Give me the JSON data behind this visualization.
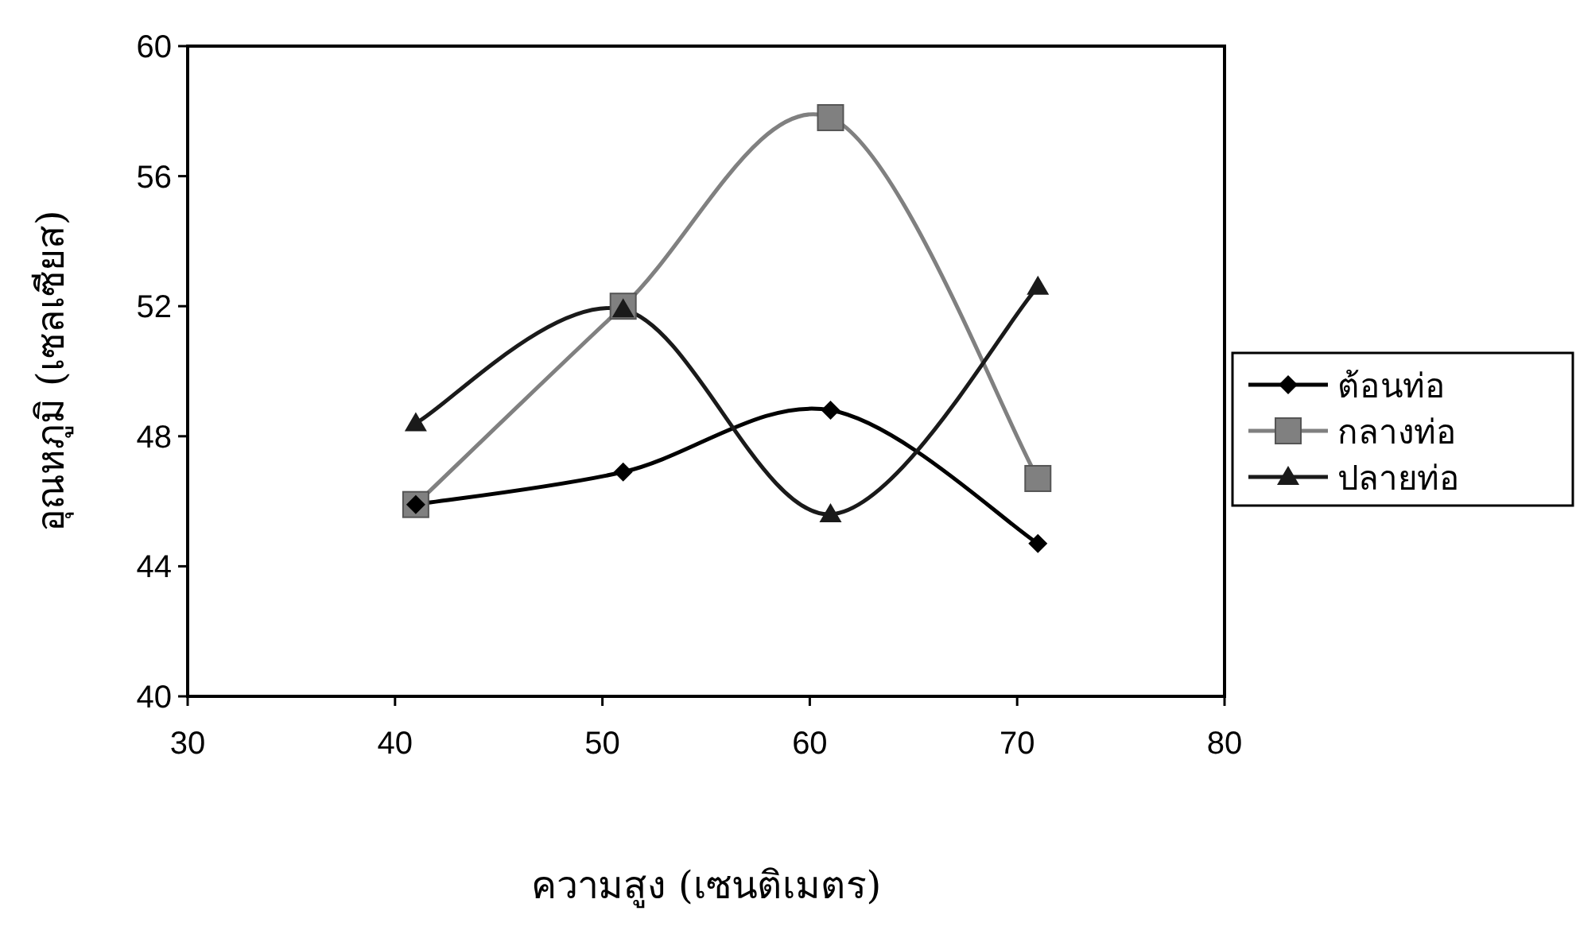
{
  "chart_data": {
    "type": "line",
    "xlabel": "ความสูง (เซนติเมตร)",
    "ylabel": "อุณหภูมิ (เซลเซียส)",
    "xlim": [
      30,
      80
    ],
    "xticks": [
      30,
      40,
      50,
      60,
      70,
      80
    ],
    "ylim": [
      40,
      60
    ],
    "yticks": [
      40,
      44,
      48,
      52,
      56,
      60
    ],
    "grid": false,
    "legend": "right",
    "line_style": "solid",
    "x": [
      41,
      51,
      61,
      71
    ],
    "series": [
      {
        "name": "ต้อนท่อ",
        "color": "#000000",
        "marker": "diamond",
        "values": [
          45.9,
          46.9,
          48.8,
          44.7
        ]
      },
      {
        "name": "กลางท่อ",
        "color": "#808080",
        "marker": "square",
        "values": [
          45.9,
          52.0,
          57.8,
          46.7
        ]
      },
      {
        "name": "ปลายท่อ",
        "color": "#1a1a1a",
        "marker": "triangle",
        "values": [
          48.4,
          51.9,
          45.6,
          52.6
        ]
      }
    ]
  }
}
